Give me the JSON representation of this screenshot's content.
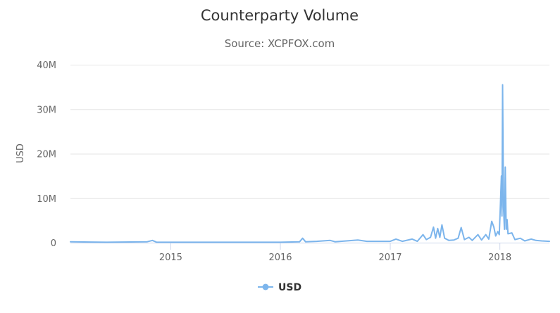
{
  "chart_data": {
    "type": "line",
    "title": "Counterparty Volume",
    "subtitle": "Source: XCPFOX.com",
    "xlabel": "",
    "ylabel": "USD",
    "ylim": [
      0,
      40000000
    ],
    "xlim": [
      "2014-02-01",
      "2018-06-15"
    ],
    "y_ticks": [
      {
        "value": 0,
        "label": "0"
      },
      {
        "value": 10000000,
        "label": "10M"
      },
      {
        "value": 20000000,
        "label": "20M"
      },
      {
        "value": 30000000,
        "label": "30M"
      },
      {
        "value": 40000000,
        "label": "40M"
      }
    ],
    "x_ticks": [
      {
        "value": "2015-01-01",
        "label": "2015"
      },
      {
        "value": "2016-01-01",
        "label": "2016"
      },
      {
        "value": "2017-01-01",
        "label": "2017"
      },
      {
        "value": "2018-01-01",
        "label": "2018"
      }
    ],
    "grid": {
      "horizontal": true,
      "vertical": false
    },
    "legend": {
      "position": "bottom-center"
    },
    "series": [
      {
        "name": "USD",
        "color": "#7cb5ec",
        "points": [
          [
            "2014-02-01",
            200000
          ],
          [
            "2014-06-01",
            100000
          ],
          [
            "2014-10-15",
            200000
          ],
          [
            "2014-11-01",
            500000
          ],
          [
            "2014-11-15",
            100000
          ],
          [
            "2015-06-01",
            100000
          ],
          [
            "2016-01-01",
            100000
          ],
          [
            "2016-03-05",
            200000
          ],
          [
            "2016-03-15",
            1000000
          ],
          [
            "2016-03-25",
            200000
          ],
          [
            "2016-05-01",
            300000
          ],
          [
            "2016-06-15",
            500000
          ],
          [
            "2016-07-01",
            200000
          ],
          [
            "2016-09-15",
            600000
          ],
          [
            "2016-10-15",
            300000
          ],
          [
            "2017-01-01",
            300000
          ],
          [
            "2017-01-20",
            800000
          ],
          [
            "2017-02-10",
            300000
          ],
          [
            "2017-03-15",
            800000
          ],
          [
            "2017-04-01",
            300000
          ],
          [
            "2017-04-20",
            1800000
          ],
          [
            "2017-05-01",
            700000
          ],
          [
            "2017-05-15",
            1200000
          ],
          [
            "2017-05-25",
            3500000
          ],
          [
            "2017-06-01",
            1000000
          ],
          [
            "2017-06-08",
            3200000
          ],
          [
            "2017-06-15",
            1200000
          ],
          [
            "2017-06-22",
            4000000
          ],
          [
            "2017-07-01",
            1000000
          ],
          [
            "2017-07-15",
            500000
          ],
          [
            "2017-08-01",
            600000
          ],
          [
            "2017-08-15",
            1000000
          ],
          [
            "2017-08-25",
            3400000
          ],
          [
            "2017-09-05",
            700000
          ],
          [
            "2017-09-20",
            1200000
          ],
          [
            "2017-10-01",
            500000
          ],
          [
            "2017-10-20",
            1800000
          ],
          [
            "2017-11-01",
            600000
          ],
          [
            "2017-11-15",
            1800000
          ],
          [
            "2017-11-25",
            800000
          ],
          [
            "2017-12-05",
            4800000
          ],
          [
            "2017-12-12",
            3500000
          ],
          [
            "2017-12-18",
            1500000
          ],
          [
            "2017-12-25",
            2500000
          ],
          [
            "2017-12-30",
            1800000
          ],
          [
            "2018-01-03",
            9000000
          ],
          [
            "2018-01-06",
            15000000
          ],
          [
            "2018-01-08",
            6000000
          ],
          [
            "2018-01-10",
            35500000
          ],
          [
            "2018-01-13",
            8000000
          ],
          [
            "2018-01-16",
            3000000
          ],
          [
            "2018-01-19",
            17000000
          ],
          [
            "2018-01-22",
            3000000
          ],
          [
            "2018-01-25",
            5200000
          ],
          [
            "2018-01-28",
            2000000
          ],
          [
            "2018-02-10",
            2200000
          ],
          [
            "2018-02-20",
            700000
          ],
          [
            "2018-03-10",
            1000000
          ],
          [
            "2018-03-25",
            400000
          ],
          [
            "2018-04-15",
            800000
          ],
          [
            "2018-05-01",
            500000
          ],
          [
            "2018-05-20",
            400000
          ],
          [
            "2018-06-15",
            300000
          ]
        ]
      }
    ]
  }
}
